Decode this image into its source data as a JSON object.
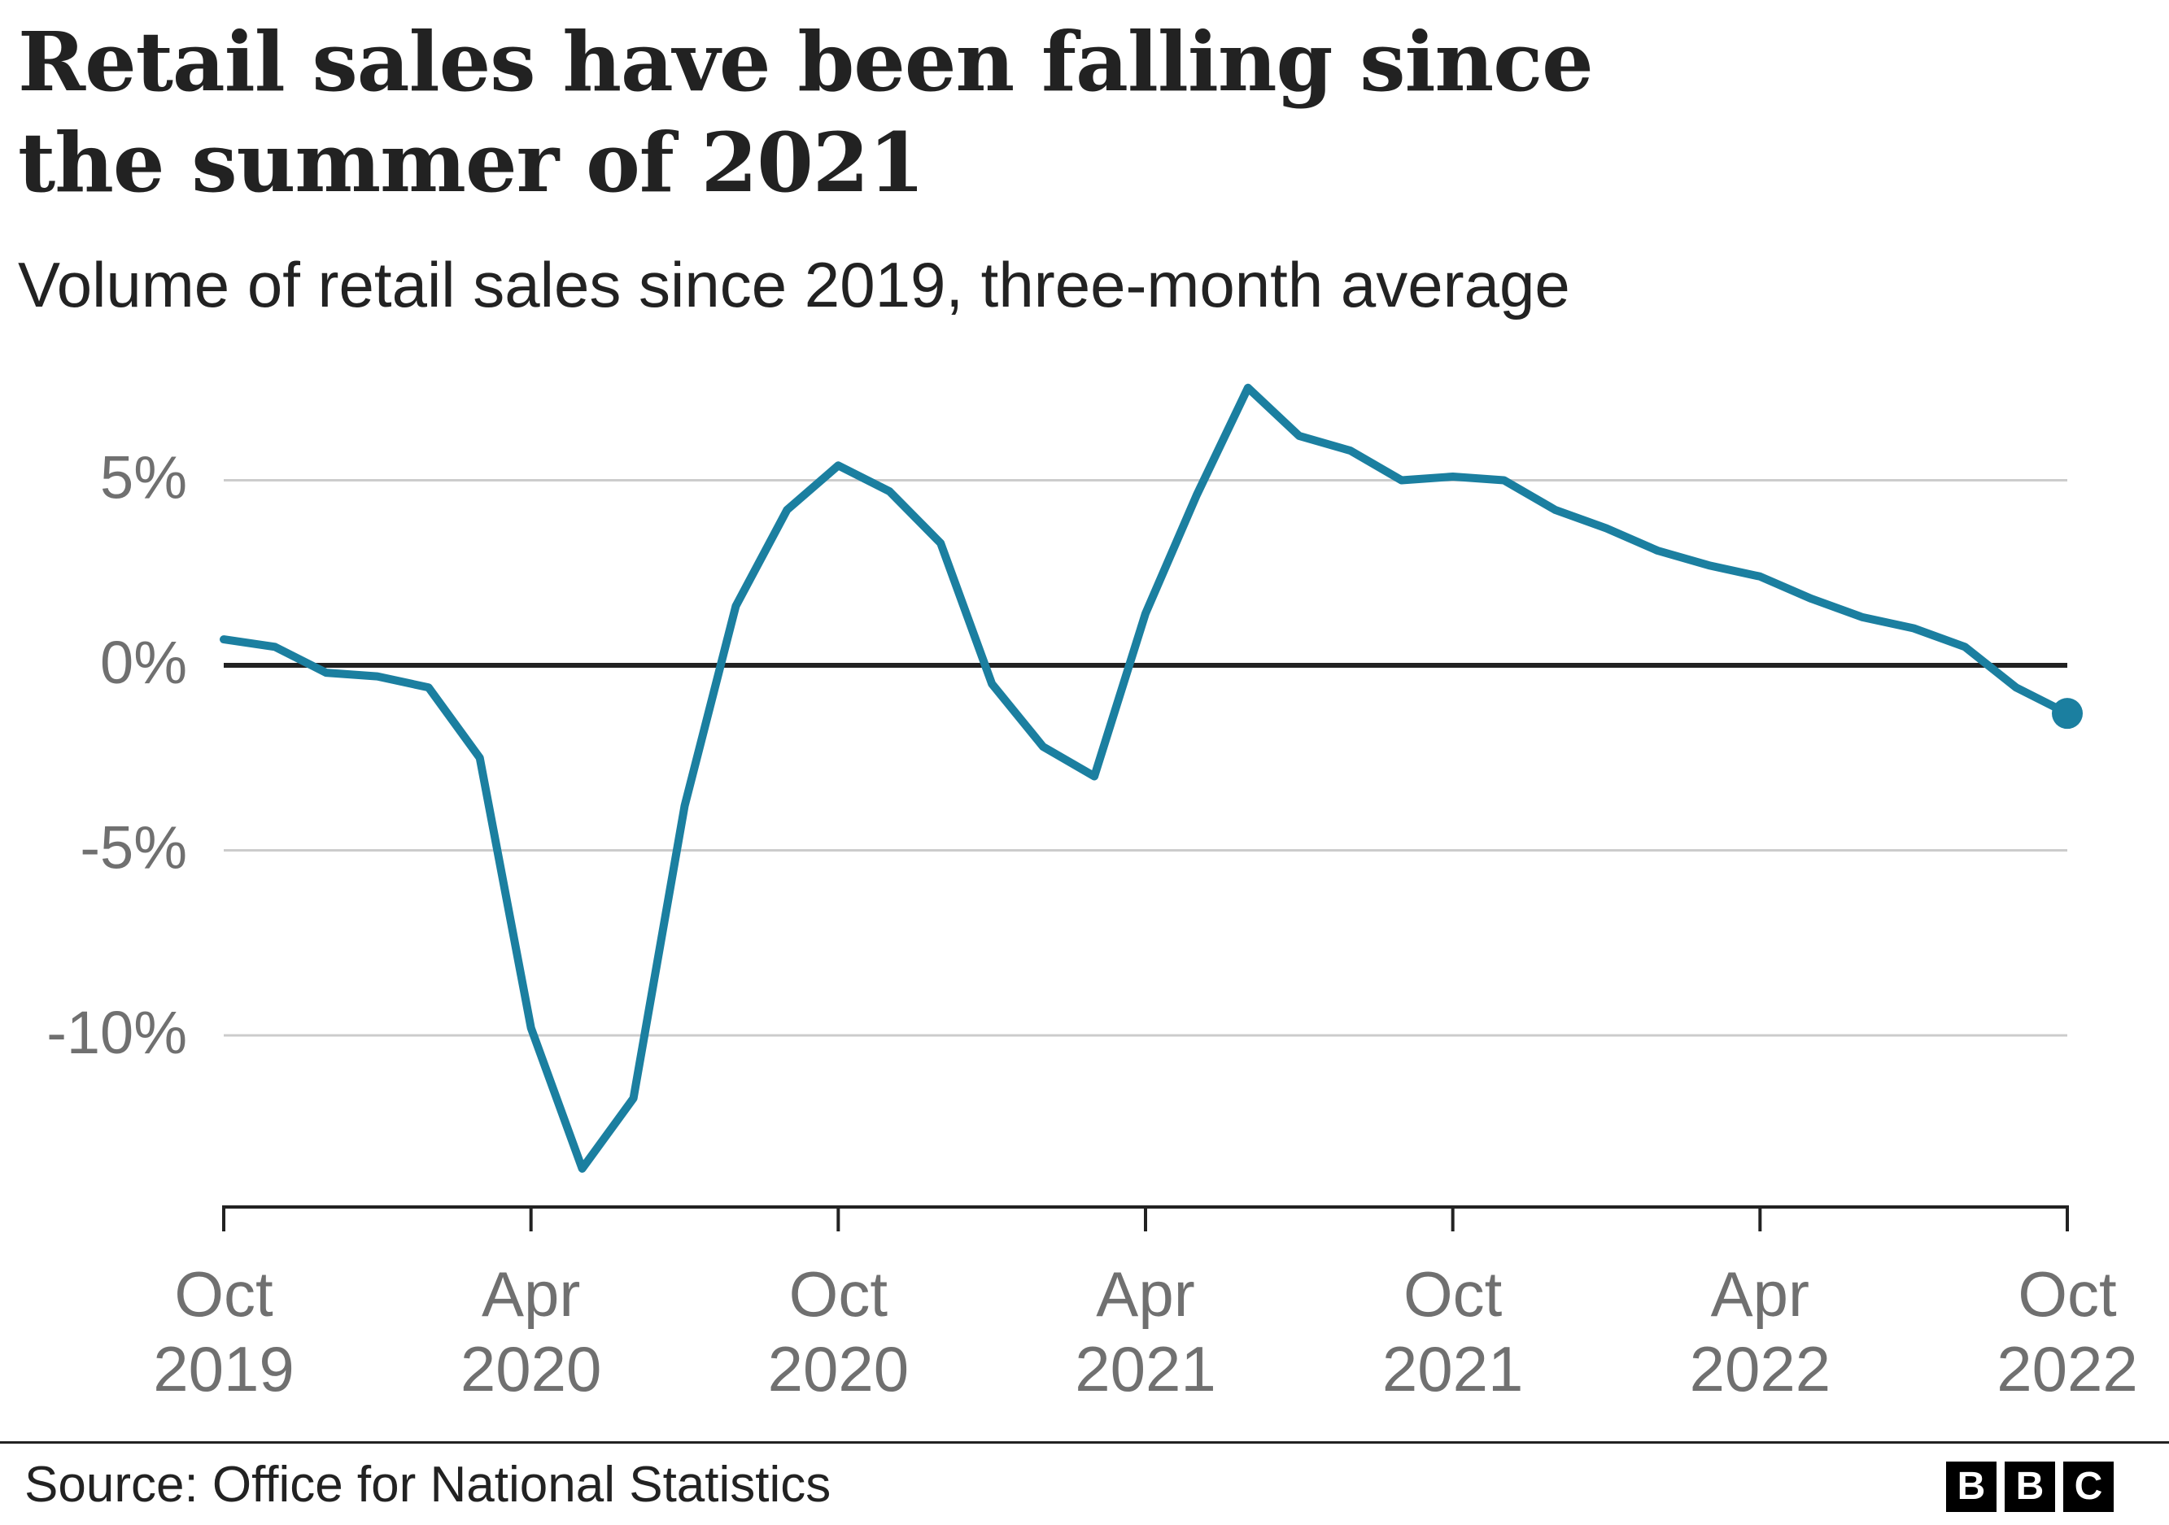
{
  "header": {
    "title": "Retail sales have been falling since the summer of 2021",
    "subtitle": "Volume of retail sales since 2019, three-month average"
  },
  "footer": {
    "source": "Source: Office for National Statistics",
    "logo_letters": [
      "B",
      "B",
      "C"
    ]
  },
  "colors": {
    "line": "#1b7fa0",
    "grid": "#cccccc",
    "zero_line": "#222222",
    "tick_label": "#707070"
  },
  "chart_data": {
    "type": "line",
    "title": "Retail sales have been falling since the summer of 2021",
    "subtitle": "Volume of retail sales since 2019, three-month average",
    "xlabel": "",
    "ylabel": "",
    "ylim": [
      -14.5,
      8
    ],
    "y_ticks": [
      {
        "value": 5,
        "label": "5%"
      },
      {
        "value": 0,
        "label": "0%"
      },
      {
        "value": -5,
        "label": "-5%"
      },
      {
        "value": -10,
        "label": "-10%"
      }
    ],
    "x_ticks": [
      {
        "index": 0,
        "line1": "Oct",
        "line2": "2019"
      },
      {
        "index": 6,
        "line1": "Apr",
        "line2": "2020"
      },
      {
        "index": 12,
        "line1": "Oct",
        "line2": "2020"
      },
      {
        "index": 18,
        "line1": "Apr",
        "line2": "2021"
      },
      {
        "index": 24,
        "line1": "Oct",
        "line2": "2021"
      },
      {
        "index": 30,
        "line1": "Apr",
        "line2": "2022"
      },
      {
        "index": 36,
        "line1": "Oct",
        "line2": "2022"
      }
    ],
    "grid": true,
    "series": [
      {
        "name": "Volume of retail sales, three-month average",
        "x": [
          "Oct 2019",
          "Nov 2019",
          "Dec 2019",
          "Jan 2020",
          "Feb 2020",
          "Mar 2020",
          "Apr 2020",
          "May 2020",
          "Jun 2020",
          "Jul 2020",
          "Aug 2020",
          "Sep 2020",
          "Oct 2020",
          "Nov 2020",
          "Dec 2020",
          "Jan 2021",
          "Feb 2021",
          "Mar 2021",
          "Apr 2021",
          "May 2021",
          "Jun 2021",
          "Jul 2021",
          "Aug 2021",
          "Sep 2021",
          "Oct 2021",
          "Nov 2021",
          "Dec 2021",
          "Jan 2022",
          "Feb 2022",
          "Mar 2022",
          "Apr 2022",
          "May 2022",
          "Jun 2022",
          "Jul 2022",
          "Aug 2022",
          "Sep 2022",
          "Oct 2022"
        ],
        "values": [
          0.7,
          0.5,
          -0.2,
          -0.3,
          -0.6,
          -2.5,
          -9.8,
          -13.6,
          -11.7,
          -3.8,
          1.6,
          4.2,
          5.4,
          4.7,
          3.3,
          -0.5,
          -2.2,
          -3.0,
          1.4,
          4.6,
          7.5,
          6.2,
          5.8,
          5.0,
          5.1,
          5.0,
          4.2,
          3.7,
          3.1,
          2.7,
          2.4,
          1.8,
          1.3,
          1.0,
          0.5,
          -0.6,
          -1.3
        ]
      }
    ],
    "end_marker": true
  }
}
